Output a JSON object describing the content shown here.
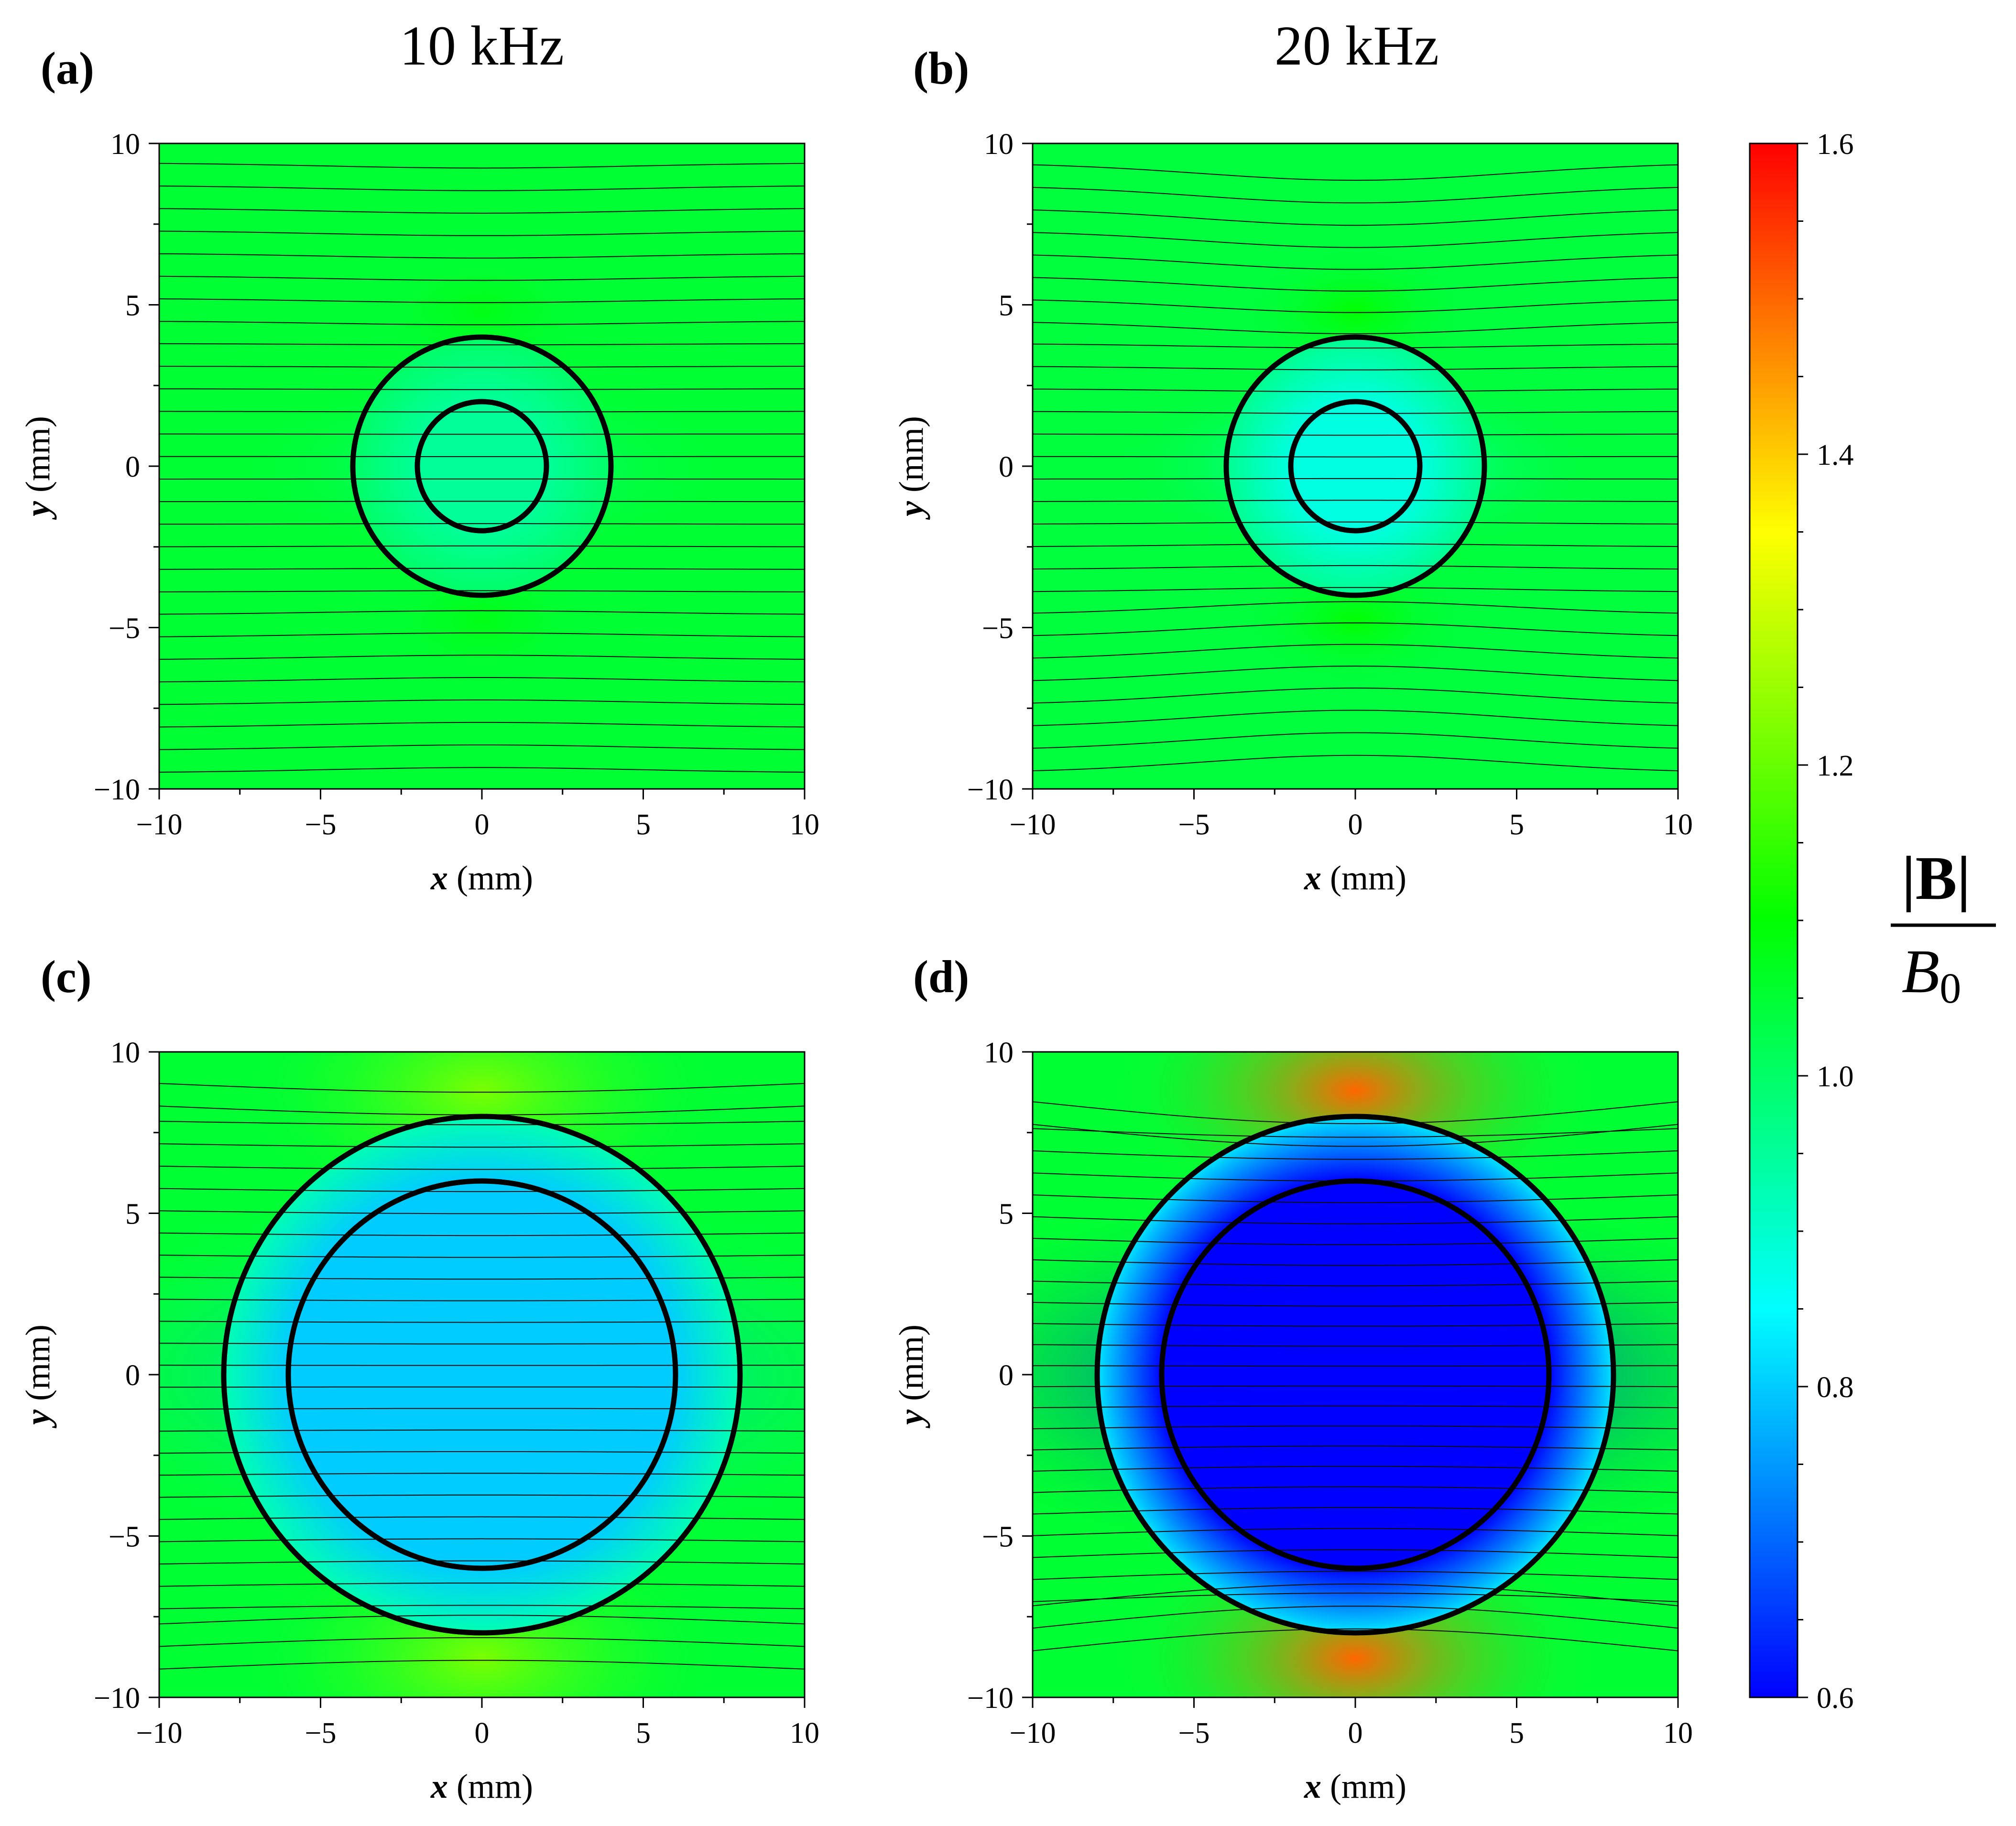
{
  "chart_data": {
    "type": "heatmap",
    "column_titles": [
      "10 kHz",
      "20 kHz"
    ],
    "xlabel": {
      "var": "x",
      "unit": "(mm)"
    },
    "ylabel": {
      "var": "y",
      "unit": "(mm)"
    },
    "xlim": [
      -10,
      10
    ],
    "ylim": [
      -10,
      10
    ],
    "x_ticks": [
      -10,
      -5,
      0,
      5,
      10
    ],
    "y_ticks": [
      -10,
      -5,
      0,
      5,
      10
    ],
    "tick_labels": [
      "−10",
      "−5",
      "0",
      "5",
      "10"
    ],
    "colorbar": {
      "label_numerator": "|B|",
      "label_denominator": "B",
      "label_denominator_subscript": "0",
      "range": [
        0.6,
        1.6
      ],
      "ticks": [
        0.6,
        0.8,
        1.0,
        1.2,
        1.4,
        1.6
      ],
      "tick_labels": [
        "0.6",
        "0.8",
        "1.0",
        "1.2",
        "1.4",
        "1.6"
      ],
      "colormap": [
        "#0000ff",
        "#0080ff",
        "#00ffff",
        "#00ff80",
        "#00ff00",
        "#80ff00",
        "#ffff00",
        "#ff8000",
        "#ff0000"
      ]
    },
    "panels": [
      {
        "id": "a",
        "label": "(a)",
        "frequency": "10 kHz",
        "inner_radius": 2,
        "outer_radius": 4,
        "field_inside": 0.95,
        "field_background": 1.05,
        "field_peak": 1.08,
        "line_bend": 0.03
      },
      {
        "id": "b",
        "label": "(b)",
        "frequency": "20 kHz",
        "inner_radius": 2,
        "outer_radius": 4,
        "field_inside": 0.88,
        "field_background": 1.04,
        "field_peak": 1.1,
        "line_bend": 0.1
      },
      {
        "id": "c",
        "label": "(c)",
        "frequency": "10 kHz",
        "inner_radius": 6,
        "outer_radius": 8,
        "field_inside": 0.8,
        "field_background": 1.05,
        "field_peak": 1.22,
        "line_bend": 0.12
      },
      {
        "id": "d",
        "label": "(d)",
        "frequency": "20 kHz",
        "inner_radius": 6,
        "outer_radius": 8,
        "field_inside": 0.6,
        "field_background": 1.05,
        "field_peak": 1.5,
        "line_bend": 0.3
      }
    ]
  }
}
